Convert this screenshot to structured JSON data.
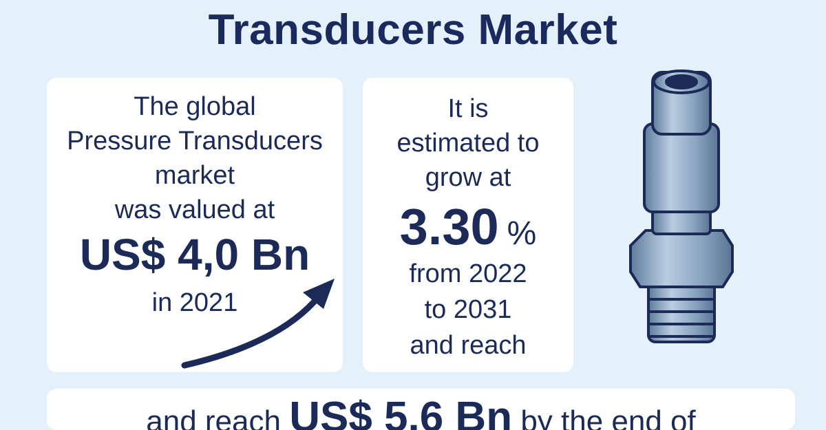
{
  "header": {
    "title": "Transducers Market"
  },
  "cards": [
    {
      "lines": [
        "The global",
        "Pressure Transducers",
        "market",
        "was valued at"
      ],
      "value": "US$ 4,0 Bn",
      "after": [
        "in 2021"
      ]
    },
    {
      "lines": [
        "It is",
        "estimated to",
        "grow at"
      ],
      "value": "3.30",
      "unit": "%",
      "after": [
        "from 2022",
        "to 2031",
        "and reach"
      ]
    }
  ],
  "footer": {
    "prefix": "and reach",
    "value": "US$ 5.6 Bn",
    "suffix": "by the end of"
  }
}
